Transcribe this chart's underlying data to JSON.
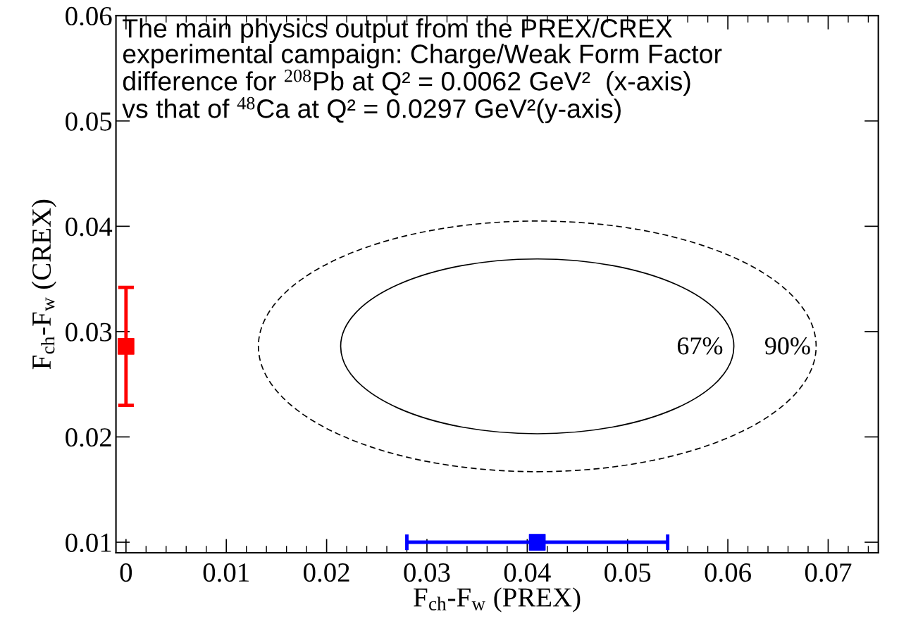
{
  "chart_data": {
    "type": "scatter",
    "title": "The main physics output from the PREX/CREX\nexperimental campaign: Charge/Weak Form Factor\ndifference for $^{208}$Pb at Q² = 0.0062 GeV²  (x-axis)\nvs that of $^{48}$Ca at Q² = 0.0297 GeV²(y-axis)",
    "xlabel": "F$_{ch}$-F$_{w}$ (PREX)",
    "ylabel": "F$_{ch}$-F$_{w}$ (CREX)",
    "xlim": [
      -0.001,
      0.075
    ],
    "xticks": [
      {
        "value": 0,
        "label": "0"
      },
      0.01,
      0.02,
      0.03,
      0.04,
      0.05,
      0.06,
      0.07
    ],
    "ylim": [
      0.009,
      0.06
    ],
    "yticks": [
      0.01,
      0.02,
      0.03,
      0.04,
      0.05,
      0.06
    ],
    "grid": false,
    "legend": false,
    "series": [
      {
        "color": "#ff0000",
        "marker": "square",
        "x": [
          0
        ],
        "values": [
          0.0286
        ],
        "errors": [
          [
            0.023,
            0.0342
          ]
        ]
      },
      {
        "color": "#0000ff",
        "marker": "square",
        "x": [
          0.041
        ],
        "values": [
          0.01
        ],
        "xerrors": [
          [
            0.028,
            0.054
          ]
        ]
      }
    ],
    "annotations": [
      "67%",
      "90%"
    ]
  }
}
